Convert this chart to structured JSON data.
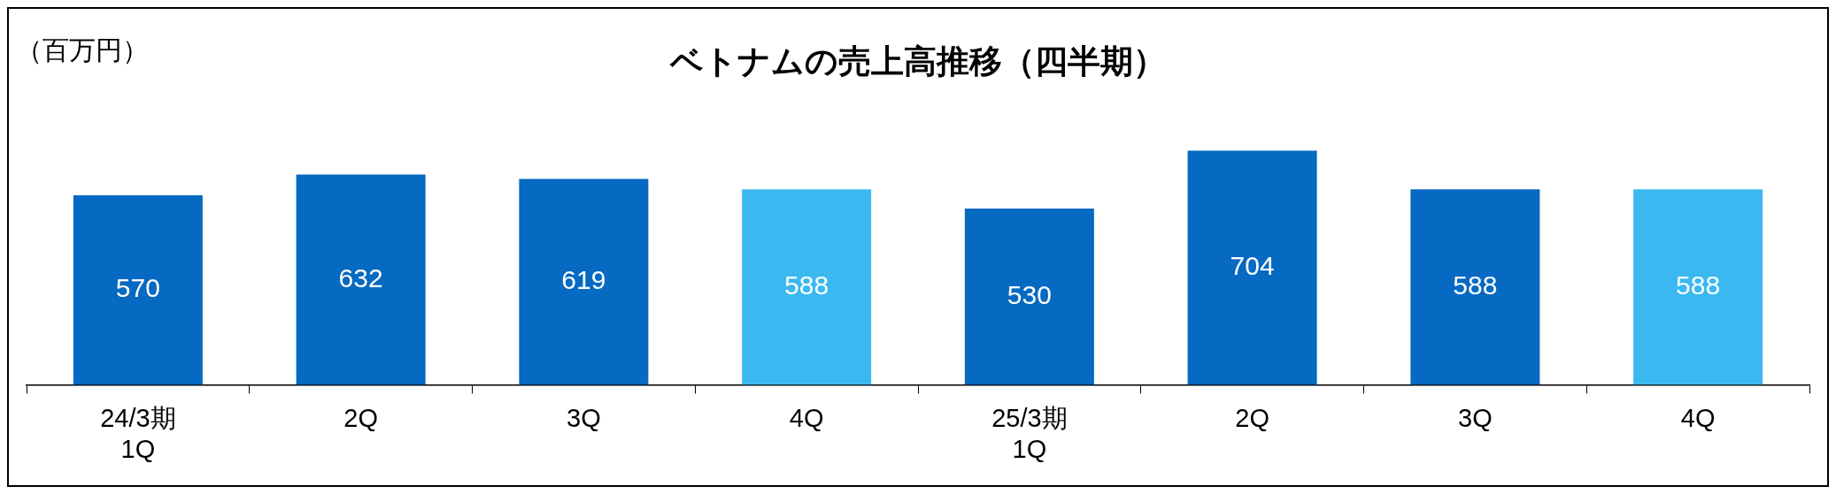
{
  "chart_data": {
    "type": "bar",
    "title": "ベトナムの売上高推移（四半期）",
    "ylabel": "（百万円）",
    "categories": [
      "24/3期\n1Q",
      "2Q",
      "3Q",
      "4Q",
      "25/3期\n1Q",
      "2Q",
      "3Q",
      "4Q"
    ],
    "values": [
      570,
      632,
      619,
      588,
      530,
      704,
      588,
      588
    ],
    "colors": [
      "#0669c2",
      "#0669c2",
      "#0669c2",
      "#3bb8f0",
      "#0669c2",
      "#0669c2",
      "#0669c2",
      "#3bb8f0"
    ],
    "data_labels": true,
    "grid": false,
    "legend": false
  }
}
